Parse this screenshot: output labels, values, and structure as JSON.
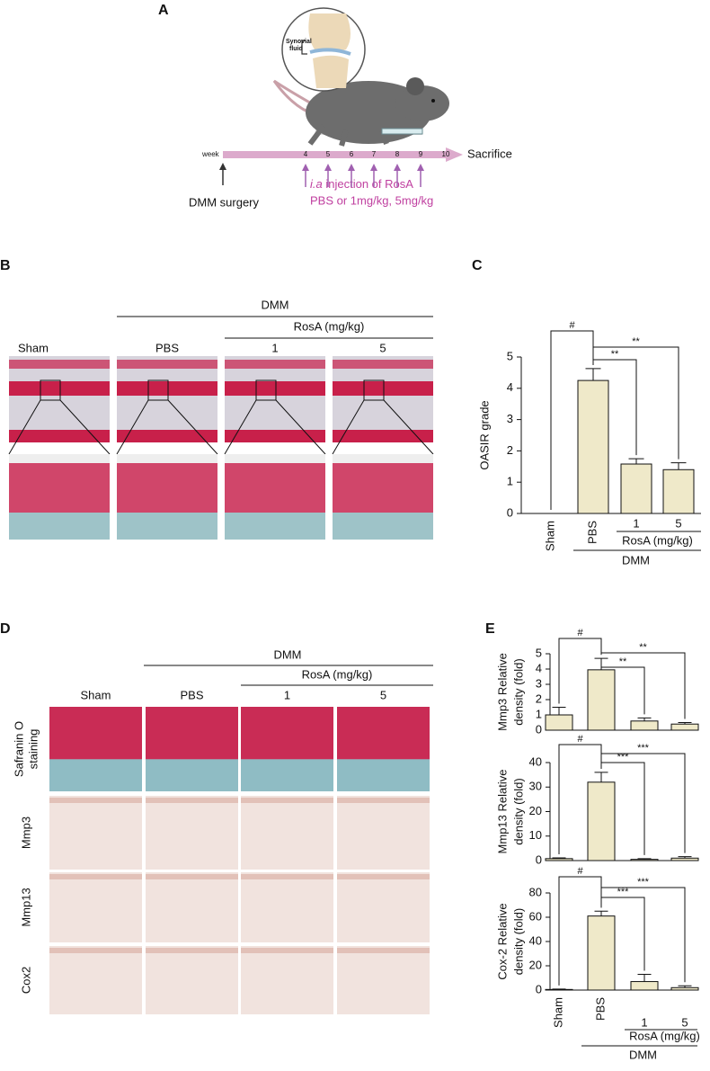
{
  "panel_a": {
    "label": "A",
    "inset_label": [
      "Synovial",
      "fluid"
    ],
    "timeline_unit": "week",
    "weeks": [
      4,
      5,
      6,
      7,
      8,
      9,
      10
    ],
    "end_label": "Sacrifice",
    "surgery_label": "DMM surgery",
    "injection_route": "i.a",
    "injection_label": "injection of RosA",
    "dose_label": "PBS or 1mg/kg, 5mg/kg"
  },
  "panel_b": {
    "label": "B",
    "group": "DMM",
    "subgroup": "RosA (mg/kg)",
    "columns": [
      "Sham",
      "PBS",
      "1",
      "5"
    ]
  },
  "panel_c": {
    "label": "C"
  },
  "panel_d": {
    "label": "D",
    "group": "DMM",
    "subgroup": "RosA (mg/kg)",
    "columns": [
      "Sham",
      "PBS",
      "1",
      "5"
    ],
    "rows": [
      [
        "Safranin O",
        "staining"
      ],
      "Mmp3",
      "Mmp13",
      "Cox2"
    ]
  },
  "panel_e": {
    "label": "E"
  },
  "chart_data": [
    {
      "type": "bar",
      "ylabel": [
        "OASIR grade"
      ],
      "categories": [
        "Sham",
        "PBS",
        "1",
        "5"
      ],
      "values": [
        0,
        4.25,
        1.58,
        1.4
      ],
      "errors": [
        0,
        0.38,
        0.17,
        0.22
      ],
      "ylim": [
        0,
        5
      ],
      "yticks": [
        0,
        1,
        2,
        3,
        4,
        5
      ],
      "color": "#efe9c9",
      "significance": [
        "#",
        "**",
        "**"
      ],
      "subgroup": "RosA (mg/kg)",
      "group": "DMM"
    },
    {
      "type": "bar",
      "ylabel": [
        "Mmp3 Relative",
        "density (fold)"
      ],
      "categories": [
        null,
        null,
        null,
        null
      ],
      "values": [
        1,
        3.95,
        0.6,
        0.4
      ],
      "errors": [
        0.5,
        0.75,
        0.2,
        0.1
      ],
      "ylim": [
        0,
        5
      ],
      "yticks": [
        0,
        1,
        2,
        3,
        4,
        5
      ],
      "color": "#efe9c9",
      "significance": [
        "#",
        "**",
        "**"
      ]
    },
    {
      "type": "bar",
      "ylabel": [
        "Mmp13 Relative",
        "density (fold)"
      ],
      "categories": [
        null,
        null,
        null,
        null
      ],
      "values": [
        0.8,
        32,
        0.5,
        1
      ],
      "errors": [
        0.3,
        4,
        0.3,
        0.6
      ],
      "ylim": [
        0,
        40
      ],
      "yticks": [
        0,
        10,
        20,
        30,
        40
      ],
      "color": "#efe9c9",
      "significance": [
        "#",
        "***",
        "***"
      ]
    },
    {
      "type": "bar",
      "ylabel": [
        "Cox-2 Relative",
        "density (fold)"
      ],
      "categories": [
        "Sham",
        "PBS",
        "1",
        "5"
      ],
      "values": [
        0.5,
        61,
        7,
        2
      ],
      "errors": [
        0.3,
        4,
        6,
        1.5
      ],
      "ylim": [
        0,
        80
      ],
      "yticks": [
        0,
        20,
        40,
        60,
        80
      ],
      "color": "#efe9c9",
      "significance": [
        "#",
        "***",
        "***"
      ],
      "subgroup": "RosA (mg/kg)",
      "group": "DMM"
    }
  ]
}
